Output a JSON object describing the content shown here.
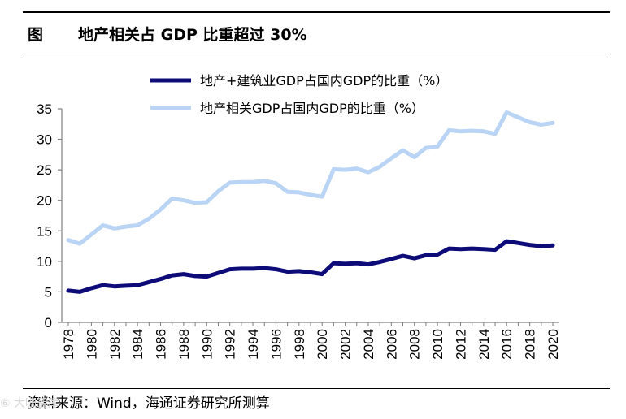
{
  "figure": {
    "label": "图",
    "title": "地产相关占 GDP 比重超过 30%",
    "source": "资料来源：Wind，海通证券研究所测算",
    "watermark": "⑥ 大咖智库"
  },
  "colors": {
    "series1": "#0d0b78",
    "series2": "#b9d4f4",
    "axis": "#7f7f7f"
  },
  "chart_data": {
    "type": "line",
    "title": "地产相关占 GDP 比重超过 30%",
    "xlabel": "",
    "ylabel": "",
    "ylim": [
      0,
      35
    ],
    "yticks": [
      0,
      5,
      10,
      15,
      20,
      25,
      30,
      35
    ],
    "grid": false,
    "legend": "top",
    "x": [
      1978,
      1979,
      1980,
      1981,
      1982,
      1983,
      1984,
      1985,
      1986,
      1987,
      1988,
      1989,
      1990,
      1991,
      1992,
      1993,
      1994,
      1995,
      1996,
      1997,
      1998,
      1999,
      2000,
      2001,
      2002,
      2003,
      2004,
      2005,
      2006,
      2007,
      2008,
      2009,
      2010,
      2011,
      2012,
      2013,
      2014,
      2015,
      2016,
      2017,
      2018,
      2019,
      2020
    ],
    "xticklabels": [
      "1978",
      "1980",
      "1982",
      "1984",
      "1986",
      "1988",
      "1990",
      "1992",
      "1994",
      "1996",
      "1998",
      "2000",
      "2002",
      "2004",
      "2006",
      "2008",
      "2010",
      "2012",
      "2014",
      "2016",
      "2018",
      "2020"
    ],
    "series": [
      {
        "name": "地产+建筑业GDP占国内GDP的比重（%）",
        "values": [
          5.2,
          5.0,
          5.6,
          6.1,
          5.9,
          6.0,
          6.1,
          6.6,
          7.1,
          7.7,
          7.9,
          7.6,
          7.5,
          8.1,
          8.7,
          8.8,
          8.8,
          8.9,
          8.7,
          8.3,
          8.4,
          8.2,
          7.9,
          9.7,
          9.6,
          9.7,
          9.5,
          9.9,
          10.4,
          10.9,
          10.5,
          11.0,
          11.1,
          12.1,
          12.0,
          12.1,
          12.0,
          11.9,
          13.3,
          13.0,
          12.7,
          12.5,
          12.6
        ]
      },
      {
        "name": "地产相关GDP占国内GDP的比重（%）",
        "values": [
          13.5,
          12.9,
          14.4,
          15.9,
          15.4,
          15.7,
          15.9,
          17.0,
          18.5,
          20.3,
          20.0,
          19.6,
          19.7,
          21.5,
          22.9,
          23.0,
          23.0,
          23.2,
          22.8,
          21.4,
          21.3,
          20.9,
          20.6,
          25.1,
          25.0,
          25.2,
          24.6,
          25.5,
          26.9,
          28.2,
          27.1,
          28.6,
          28.8,
          31.5,
          31.3,
          31.4,
          31.3,
          30.9,
          34.4,
          33.6,
          32.8,
          32.4,
          32.7
        ]
      }
    ]
  }
}
